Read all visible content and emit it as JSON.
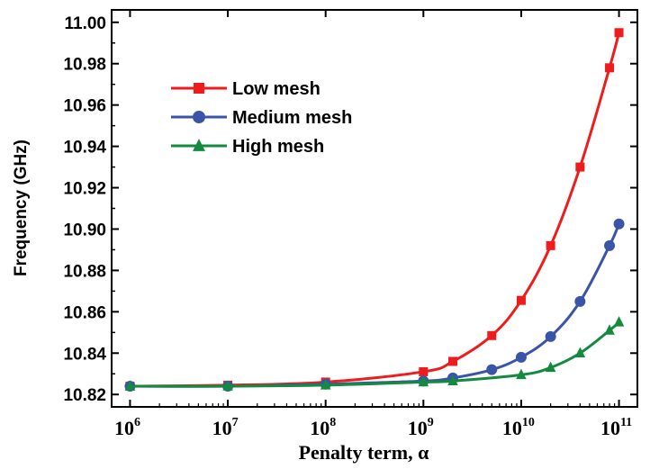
{
  "chart_data": {
    "type": "line",
    "xlabel": "Penalty term, α",
    "ylabel": "Frequency (GHz)",
    "x_scale": "log",
    "xlim": [
      1000000,
      100000000000
    ],
    "ylim": [
      10.814,
      11.006
    ],
    "x_ticks": [
      {
        "base": "10",
        "exp": "6",
        "value": 1000000
      },
      {
        "base": "10",
        "exp": "7",
        "value": 10000000
      },
      {
        "base": "10",
        "exp": "8",
        "value": 100000000
      },
      {
        "base": "10",
        "exp": "9",
        "value": 1000000000
      },
      {
        "base": "10",
        "exp": "10",
        "value": 10000000000
      },
      {
        "base": "10",
        "exp": "11",
        "value": 100000000000
      }
    ],
    "y_ticks": [
      "10.82",
      "10.84",
      "10.86",
      "10.88",
      "10.90",
      "10.92",
      "10.94",
      "10.96",
      "10.98",
      "11.00"
    ],
    "legend_position": "top-left",
    "grid": false,
    "series": [
      {
        "name": "Low mesh",
        "color": "#ee1c1c",
        "marker": "square",
        "x": [
          1000000,
          10000000,
          100000000,
          1000000000,
          2000000000,
          5000000000,
          10000000000,
          20000000000,
          40000000000,
          80000000000,
          100000000000
        ],
        "y": [
          10.824,
          10.8245,
          10.826,
          10.831,
          10.836,
          10.8485,
          10.8655,
          10.892,
          10.93,
          10.978,
          10.995
        ]
      },
      {
        "name": "Medium mesh",
        "color": "#3a55a8",
        "marker": "circle",
        "x": [
          1000000,
          10000000,
          100000000,
          1000000000,
          2000000000,
          5000000000,
          10000000000,
          20000000000,
          40000000000,
          80000000000,
          100000000000
        ],
        "y": [
          10.824,
          10.824,
          10.825,
          10.8265,
          10.828,
          10.832,
          10.838,
          10.848,
          10.865,
          10.892,
          10.9025
        ]
      },
      {
        "name": "High mesh",
        "color": "#138a3e",
        "marker": "triangle",
        "x": [
          1000000,
          10000000,
          100000000,
          1000000000,
          2000000000,
          10000000000,
          20000000000,
          40000000000,
          80000000000,
          100000000000
        ],
        "y": [
          10.824,
          10.824,
          10.8245,
          10.826,
          10.8265,
          10.8295,
          10.833,
          10.84,
          10.851,
          10.855
        ]
      }
    ]
  }
}
